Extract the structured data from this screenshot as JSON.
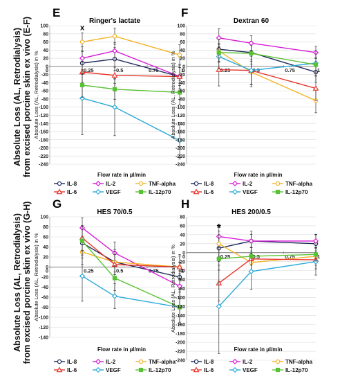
{
  "figure": {
    "ylabel_top": "Absolute Loss (AL, Retrodialysis)\nfrom excised porcine skin ex vivo (E-F)",
    "ylabel_bottom": "Absolute Loss (AL, Retrodialysis)\nfrom excised porcine skin ex vivo (G-H)"
  },
  "colors": {
    "IL-8": "#1f2a5c",
    "IL-2": "#d81ad8",
    "TNF-alpha": "#f5b324",
    "IL-6": "#e8332a",
    "VEGF": "#2aa9d8",
    "IL-12p70": "#58c234",
    "error_bar": "#333333",
    "grid": "#d9d9d9"
  },
  "chart_data": [
    {
      "type": "line",
      "panel_letter": "E",
      "title": "Ringer's lactate",
      "xlabel": "Flow rate in µl/min",
      "ylabel": "Absolute Loss (AL, Retrodialysis) in %",
      "x_ticks": [
        "0",
        "0.25",
        "0.5",
        "0.75",
        "1"
      ],
      "xlim": [
        0,
        1
      ],
      "ylim": [
        -240,
        100
      ],
      "y_step": 20,
      "grid": true,
      "legend": "bottom",
      "annotation": {
        "text": "x",
        "x": 0.25,
        "y": 96
      },
      "x": [
        0.25,
        0.5,
        1
      ],
      "series": [
        {
          "name": "IL-8",
          "marker": "circle",
          "values": [
            8,
            18,
            -25
          ],
          "errors": [
            28,
            28,
            30
          ]
        },
        {
          "name": "IL-2",
          "marker": "diamond",
          "values": [
            20,
            38,
            -25
          ],
          "errors": [
            28,
            20,
            22
          ]
        },
        {
          "name": "TNF-alpha",
          "marker": "circle",
          "values": [
            60,
            74,
            28
          ],
          "errors": [
            22,
            20,
            25
          ]
        },
        {
          "name": "IL-6",
          "marker": "triangle",
          "values": [
            -14,
            -22,
            -25
          ],
          "errors": [
            25,
            20,
            22
          ]
        },
        {
          "name": "VEGF",
          "marker": "diamond",
          "values": [
            -78,
            -100,
            -182
          ],
          "errors": [
            90,
            70,
            45
          ]
        },
        {
          "name": "IL-12p70",
          "marker": "square",
          "values": [
            -46,
            -56,
            -64
          ],
          "errors": [
            30,
            25,
            30
          ]
        }
      ]
    },
    {
      "type": "line",
      "panel_letter": "F",
      "title": "Dextran 60",
      "xlabel": "Flow rate in µl/min",
      "ylabel": "Absolute Loss (AL, Retrodialysis) in %",
      "x_ticks": [
        "0",
        "0.25",
        "0.5",
        "0.75",
        "1"
      ],
      "xlim": [
        0,
        1
      ],
      "ylim": [
        -240,
        100
      ],
      "y_step": 20,
      "grid": true,
      "legend": "bottom",
      "x": [
        0.25,
        0.5,
        1
      ],
      "series": [
        {
          "name": "IL-8",
          "marker": "circle",
          "values": [
            42,
            34,
            -14
          ],
          "errors": [
            30,
            28,
            25
          ]
        },
        {
          "name": "IL-2",
          "marker": "diamond",
          "values": [
            70,
            57,
            34
          ],
          "errors": [
            22,
            18,
            15
          ]
        },
        {
          "name": "TNF-alpha",
          "marker": "circle",
          "values": [
            38,
            -14,
            -84
          ],
          "errors": [
            28,
            30,
            30
          ]
        },
        {
          "name": "IL-6",
          "marker": "triangle",
          "values": [
            -8,
            -10,
            -54
          ],
          "errors": [
            40,
            35,
            30
          ]
        },
        {
          "name": "VEGF",
          "marker": "diamond",
          "values": [
            24,
            -10,
            8
          ],
          "errors": [
            30,
            40,
            30
          ]
        },
        {
          "name": "IL-12p70",
          "marker": "square",
          "values": [
            34,
            32,
            4
          ],
          "errors": [
            22,
            20,
            18
          ]
        }
      ]
    },
    {
      "type": "line",
      "panel_letter": "G",
      "title": "HES 70/0.5",
      "xlabel": "Flow rate in µl/min",
      "ylabel": "Absolute Loss (AL, Retrodialysis) in %",
      "x_ticks": [
        "0",
        "0.25",
        "0.5",
        "0.75",
        "1"
      ],
      "xlim": [
        0,
        1
      ],
      "ylim": [
        -140,
        100
      ],
      "y_step": 20,
      "grid": true,
      "legend": "bottom",
      "x": [
        0.25,
        0.5,
        1
      ],
      "series": [
        {
          "name": "IL-8",
          "marker": "circle",
          "values": [
            48,
            10,
            -20
          ],
          "errors": [
            30,
            25,
            30
          ]
        },
        {
          "name": "IL-2",
          "marker": "diamond",
          "values": [
            78,
            28,
            -38
          ],
          "errors": [
            20,
            22,
            25
          ]
        },
        {
          "name": "TNF-alpha",
          "marker": "circle",
          "values": [
            30,
            10,
            0
          ],
          "errors": [
            25,
            20,
            22
          ]
        },
        {
          "name": "IL-6",
          "marker": "triangle",
          "values": [
            58,
            5,
            0
          ],
          "errors": [
            25,
            20,
            25
          ]
        },
        {
          "name": "VEGF",
          "marker": "diamond",
          "values": [
            -18,
            -58,
            -80
          ],
          "errors": [
            50,
            25,
            30
          ]
        },
        {
          "name": "IL-12p70",
          "marker": "square",
          "values": [
            52,
            -22,
            -80
          ],
          "errors": [
            28,
            25,
            35
          ]
        }
      ]
    },
    {
      "type": "line",
      "panel_letter": "H",
      "title": "HES 200/0.5",
      "xlabel": "Flow rate in µl/min",
      "ylabel": "Absolute Loss (AL, Retrodialysis) in %",
      "x_ticks": [
        "0",
        "0.25",
        "0.5",
        "0.75",
        "1"
      ],
      "xlim": [
        0,
        1
      ],
      "ylim": [
        -240,
        80
      ],
      "y_step": 20,
      "grid": true,
      "legend": "bottom",
      "annotation": {
        "text": "*",
        "x": 0.25,
        "y": 54
      },
      "x": [
        0.25,
        0.5,
        1
      ],
      "series": [
        {
          "name": "IL-8",
          "marker": "circle",
          "values": [
            10,
            26,
            20
          ],
          "errors": [
            30,
            22,
            20
          ]
        },
        {
          "name": "IL-2",
          "marker": "diamond",
          "values": [
            36,
            26,
            26
          ],
          "errors": [
            20,
            15,
            15
          ]
        },
        {
          "name": "TNF-alpha",
          "marker": "circle",
          "values": [
            20,
            -22,
            -8
          ],
          "errors": [
            28,
            20,
            20
          ]
        },
        {
          "name": "IL-6",
          "marker": "triangle",
          "values": [
            -68,
            -14,
            -16
          ],
          "errors": [
            40,
            25,
            20
          ]
        },
        {
          "name": "VEGF",
          "marker": "diamond",
          "values": [
            -120,
            -42,
            -20
          ],
          "errors": [
            105,
            40,
            30
          ]
        },
        {
          "name": "IL-12p70",
          "marker": "square",
          "values": [
            -14,
            -8,
            -4
          ],
          "errors": [
            25,
            20,
            15
          ]
        }
      ]
    }
  ],
  "legend_items": [
    "IL-8",
    "IL-2",
    "TNF-alpha",
    "IL-6",
    "VEGF",
    "IL-12p70"
  ]
}
